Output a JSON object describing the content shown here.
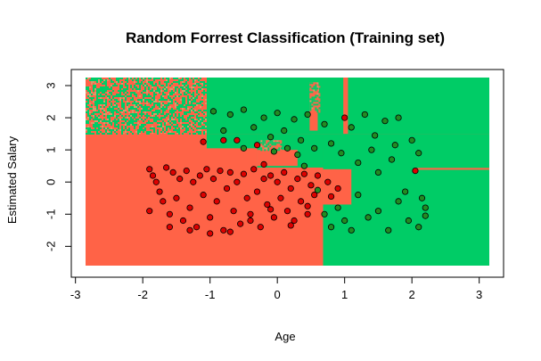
{
  "chart_data": {
    "type": "scatter",
    "title": "Random Forrest Classification (Training set)",
    "xlabel": "Age",
    "ylabel": "Estimated Salary",
    "xlim": [
      -2.85,
      3.15
    ],
    "ylim": [
      -2.6,
      3.25
    ],
    "x_ticks": [
      -3,
      -2,
      -1,
      0,
      1,
      2,
      3
    ],
    "y_ticks": [
      -2,
      -1,
      0,
      1,
      2,
      3
    ],
    "grid": false,
    "colors": {
      "region_class_0": "#ff6347",
      "region_class_1": "#00cc66",
      "mixed_noise": "#d99a6a",
      "point_class_0": "#dd0000",
      "point_class_1": "#228b22",
      "point_outline": "#000000"
    },
    "regions": [
      {
        "class": 0,
        "x": [
          -2.85,
          3.15
        ],
        "y": [
          -2.6,
          3.25
        ]
      },
      {
        "class": 1,
        "x": [
          -1.05,
          3.15
        ],
        "y": [
          1.5,
          3.25
        ]
      },
      {
        "class": 1,
        "x": [
          0.68,
          3.15
        ],
        "y": [
          -2.6,
          1.5
        ]
      },
      {
        "class": 1,
        "x": [
          -0.3,
          0.68
        ],
        "y": [
          0.45,
          1.5
        ]
      },
      {
        "class": 1,
        "x": [
          -1.05,
          -0.3
        ],
        "y": [
          1.05,
          1.5
        ]
      },
      {
        "class": 0,
        "x": [
          -0.3,
          0.3
        ],
        "y": [
          0.5,
          1.0
        ]
      },
      {
        "class": 0,
        "x": [
          0.68,
          1.1
        ],
        "y": [
          -0.7,
          0.4
        ]
      },
      {
        "class": 0,
        "x": [
          0.48,
          0.6
        ],
        "y": [
          1.6,
          3.1
        ]
      },
      {
        "class": 0,
        "x": [
          0.98,
          1.05
        ],
        "y": [
          1.5,
          3.25
        ]
      },
      {
        "class": 0,
        "x": [
          0.1,
          0.68
        ],
        "y": [
          0.1,
          0.3
        ]
      },
      {
        "class": 0,
        "x": [
          2.05,
          3.15
        ],
        "y": [
          0.38,
          0.44
        ]
      },
      {
        "class": "mixed",
        "x": [
          -2.85,
          -1.05
        ],
        "y": [
          1.5,
          3.25
        ]
      },
      {
        "class": "mixed",
        "x": [
          0.48,
          0.62
        ],
        "y": [
          2.2,
          3.1
        ]
      },
      {
        "class": "mixed",
        "x": [
          -0.25,
          0.05
        ],
        "y": [
          1.0,
          1.3
        ]
      }
    ],
    "series": [
      {
        "class": 0,
        "points": [
          [
            -1.9,
            0.4
          ],
          [
            -1.85,
            0.2
          ],
          [
            -1.8,
            0.0
          ],
          [
            -1.75,
            -0.3
          ],
          [
            -1.7,
            -0.6
          ],
          [
            -1.65,
            0.45
          ],
          [
            -1.6,
            -1.0
          ],
          [
            -1.55,
            0.3
          ],
          [
            -1.5,
            -0.5
          ],
          [
            -1.45,
            0.1
          ],
          [
            -1.4,
            -1.2
          ],
          [
            -1.35,
            0.35
          ],
          [
            -1.3,
            -0.8
          ],
          [
            -1.25,
            0.0
          ],
          [
            -1.2,
            -1.4
          ],
          [
            -1.15,
            0.2
          ],
          [
            -1.1,
            -0.4
          ],
          [
            -1.05,
            0.4
          ],
          [
            -1.0,
            -1.1
          ],
          [
            -0.95,
            0.1
          ],
          [
            -0.9,
            -0.6
          ],
          [
            -0.85,
            0.35
          ],
          [
            -0.8,
            -1.5
          ],
          [
            -0.75,
            -0.2
          ],
          [
            -0.7,
            0.3
          ],
          [
            -0.65,
            -0.9
          ],
          [
            -0.6,
            0.0
          ],
          [
            -0.55,
            -1.3
          ],
          [
            -0.5,
            0.25
          ],
          [
            -0.45,
            -0.5
          ],
          [
            -0.4,
            -1.0
          ],
          [
            -0.35,
            0.4
          ],
          [
            -0.3,
            -0.3
          ],
          [
            -0.25,
            -1.4
          ],
          [
            -0.2,
            0.1
          ],
          [
            -0.15,
            -0.7
          ],
          [
            -0.1,
            0.2
          ],
          [
            -0.05,
            -1.1
          ],
          [
            0.0,
            0.0
          ],
          [
            0.05,
            -0.5
          ],
          [
            0.1,
            0.3
          ],
          [
            0.15,
            -0.9
          ],
          [
            0.2,
            -0.2
          ],
          [
            0.25,
            -1.2
          ],
          [
            0.3,
            0.1
          ],
          [
            0.35,
            -0.6
          ],
          [
            0.4,
            0.25
          ],
          [
            0.45,
            -1.0
          ],
          [
            0.5,
            -0.1
          ],
          [
            0.55,
            -0.4
          ],
          [
            0.6,
            0.2
          ],
          [
            -1.9,
            -0.9
          ],
          [
            -1.6,
            -1.4
          ],
          [
            -1.3,
            -1.5
          ],
          [
            -1.0,
            -1.6
          ],
          [
            -0.7,
            -1.55
          ],
          [
            -0.4,
            -1.2
          ],
          [
            -0.1,
            -0.85
          ],
          [
            0.2,
            -1.35
          ],
          [
            0.45,
            -0.75
          ],
          [
            -0.8,
            1.3
          ],
          [
            -0.6,
            1.3
          ],
          [
            -0.3,
            1.15
          ],
          [
            -1.1,
            1.25
          ],
          [
            1.0,
            2.0
          ],
          [
            2.05,
            0.35
          ],
          [
            0.9,
            -0.2
          ],
          [
            0.75,
            0.0
          ],
          [
            0.8,
            -0.45
          ],
          [
            -0.2,
            0.55
          ]
        ]
      },
      {
        "class": 1,
        "points": [
          [
            -0.95,
            2.2
          ],
          [
            -0.8,
            1.6
          ],
          [
            -0.7,
            2.1
          ],
          [
            -0.5,
            2.25
          ],
          [
            -0.35,
            1.7
          ],
          [
            -0.2,
            2.0
          ],
          [
            -0.1,
            1.4
          ],
          [
            0.0,
            2.15
          ],
          [
            0.1,
            1.6
          ],
          [
            0.25,
            1.95
          ],
          [
            0.35,
            1.3
          ],
          [
            0.45,
            2.1
          ],
          [
            0.55,
            1.05
          ],
          [
            0.7,
            1.8
          ],
          [
            0.8,
            1.2
          ],
          [
            0.95,
            0.9
          ],
          [
            1.1,
            1.7
          ],
          [
            1.2,
            0.6
          ],
          [
            1.3,
            2.1
          ],
          [
            1.4,
            1.0
          ],
          [
            1.5,
            0.3
          ],
          [
            1.6,
            1.9
          ],
          [
            1.7,
            0.7
          ],
          [
            1.8,
            2.0
          ],
          [
            1.9,
            -0.3
          ],
          [
            2.0,
            1.3
          ],
          [
            2.1,
            0.9
          ],
          [
            2.15,
            -0.5
          ],
          [
            0.7,
            -1.0
          ],
          [
            0.8,
            -1.4
          ],
          [
            0.9,
            -0.8
          ],
          [
            1.0,
            -1.2
          ],
          [
            1.1,
            -1.5
          ],
          [
            1.2,
            -0.4
          ],
          [
            1.35,
            -1.1
          ],
          [
            1.5,
            -0.9
          ],
          [
            1.65,
            -1.5
          ],
          [
            1.8,
            -0.6
          ],
          [
            1.95,
            -1.2
          ],
          [
            2.1,
            -1.4
          ],
          [
            2.2,
            -0.8
          ],
          [
            0.4,
            0.5
          ],
          [
            0.3,
            0.85
          ],
          [
            0.15,
            1.05
          ],
          [
            1.45,
            1.45
          ],
          [
            1.75,
            1.15
          ],
          [
            0.6,
            -0.25
          ],
          [
            -0.05,
            0.95
          ],
          [
            -0.5,
            1.05
          ],
          [
            2.2,
            -1.05
          ]
        ]
      }
    ]
  }
}
